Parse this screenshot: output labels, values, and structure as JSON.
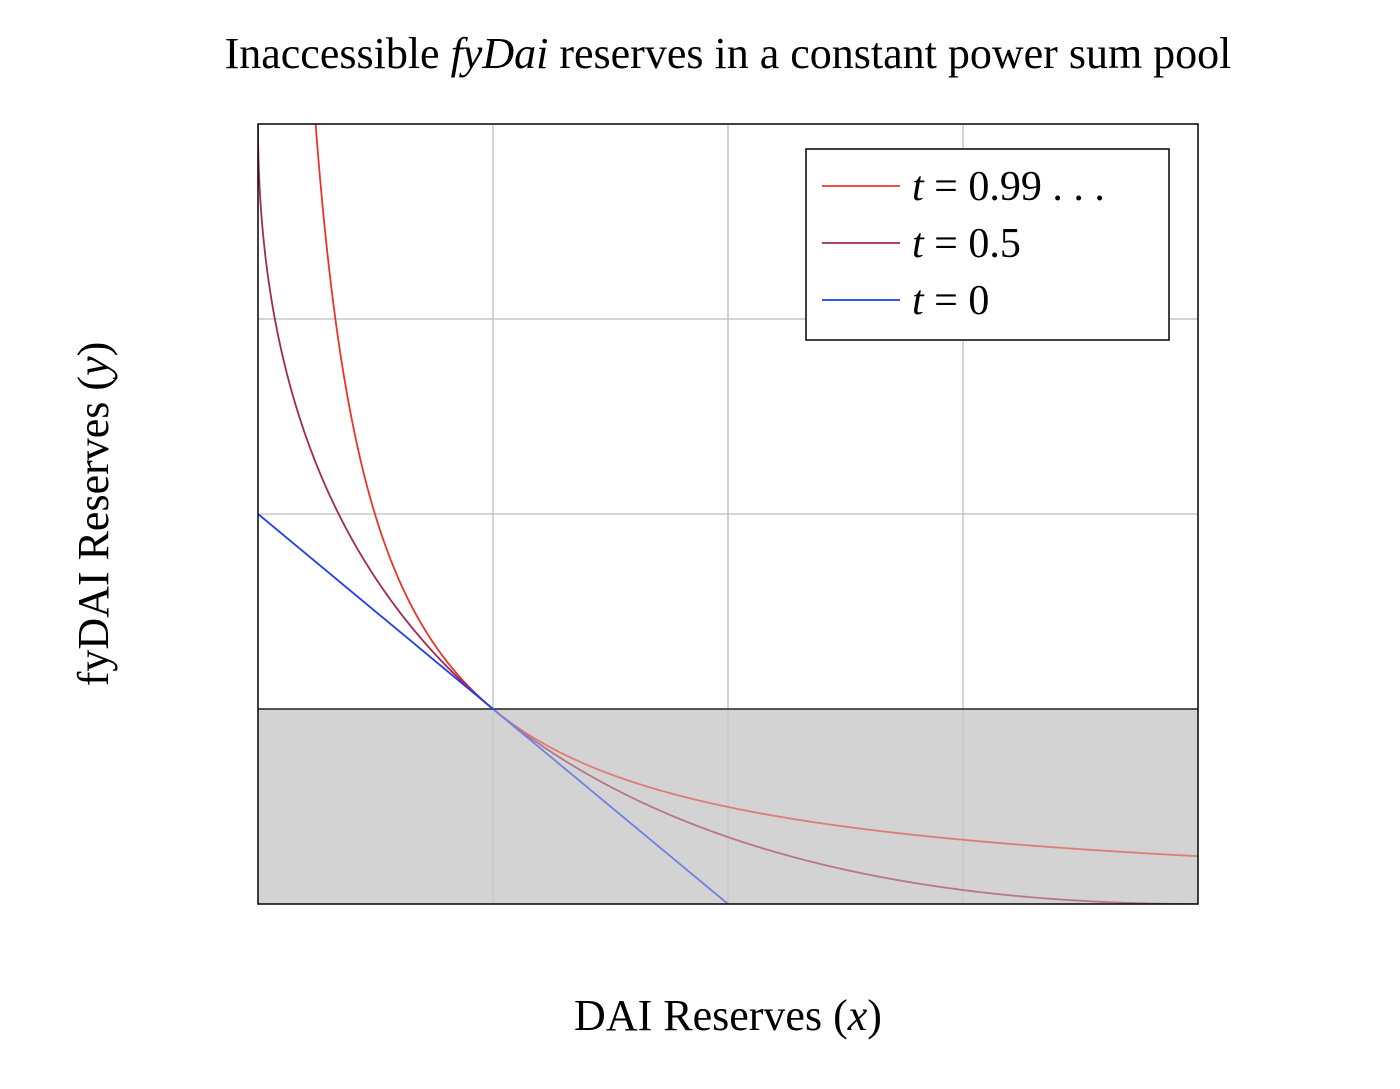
{
  "chart_data": {
    "type": "line",
    "title": {
      "prefix": "Inaccessible ",
      "emphasis": "fyDai",
      "suffix": " reserves in a constant power sum pool"
    },
    "xlabel": {
      "text": "DAI Reserves (",
      "var": "x",
      "close": ")"
    },
    "ylabel": {
      "text": "fyDAI Reserves (",
      "var": "y",
      "close": ")"
    },
    "xlim": [
      0,
      4
    ],
    "ylim": [
      0,
      4
    ],
    "grid": true,
    "tick_labels_shown": false,
    "legend_position": "top-right",
    "shaded_region": {
      "y_from": 0,
      "y_to": 1,
      "color": "#d3d3d3"
    },
    "series": [
      {
        "name_var": "t",
        "name_eq": " = ",
        "name_val": "0.99 . . .",
        "exponent": 0.01,
        "color": "#e8352b"
      },
      {
        "name_var": "t",
        "name_eq": " = ",
        "name_val": "0.5",
        "exponent": 0.5,
        "color": "#a22a50"
      },
      {
        "name_var": "t",
        "name_eq": " = ",
        "name_val": "0",
        "exponent": 1.0,
        "color": "#1f3ff0"
      }
    ],
    "constant_point": {
      "x": 1,
      "y": 1
    }
  }
}
